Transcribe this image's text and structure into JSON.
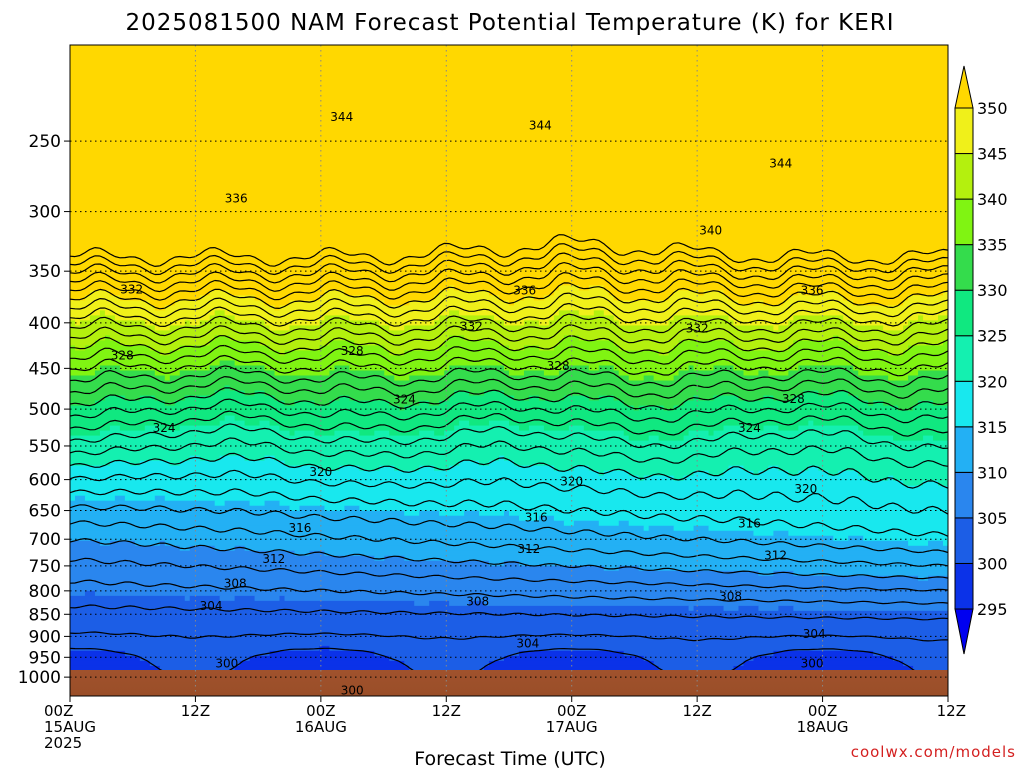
{
  "chart_data": {
    "type": "heatmap",
    "title": "2025081500 NAM Forecast Potential Temperature (K) for KERI",
    "xlabel": "Forecast Time (UTC)",
    "ylabel": "",
    "credit": "coolwx.com/models",
    "x_range_hours": [
      0,
      84
    ],
    "x_ticks": [
      {
        "hour": 0,
        "lines": [
          "00Z",
          "15AUG",
          "2025"
        ]
      },
      {
        "hour": 12,
        "lines": [
          "12Z"
        ]
      },
      {
        "hour": 24,
        "lines": [
          "00Z",
          "16AUG"
        ]
      },
      {
        "hour": 36,
        "lines": [
          "12Z"
        ]
      },
      {
        "hour": 48,
        "lines": [
          "00Z",
          "17AUG"
        ]
      },
      {
        "hour": 60,
        "lines": [
          "12Z"
        ]
      },
      {
        "hour": 72,
        "lines": [
          "00Z",
          "18AUG"
        ]
      },
      {
        "hour": 84,
        "lines": [
          "12Z"
        ]
      }
    ],
    "y_scale": "log-pressure",
    "y_range_hpa": [
      1050,
      195
    ],
    "y_ticks_hpa": [
      250,
      300,
      350,
      400,
      450,
      500,
      550,
      600,
      650,
      700,
      750,
      800,
      850,
      900,
      950,
      1000
    ],
    "grid": true,
    "colorbar": {
      "levels": [
        295,
        300,
        305,
        310,
        315,
        320,
        325,
        330,
        335,
        340,
        345,
        350
      ],
      "colors": [
        "#0000f0",
        "#0b32e8",
        "#1c5ee6",
        "#2a86ee",
        "#23b0f4",
        "#18e8ee",
        "#14f0b0",
        "#10e880",
        "#34dc4c",
        "#80f412",
        "#b4f00e",
        "#f0f01a",
        "#ffd800"
      ],
      "extend": "both"
    },
    "contour_labels": [
      {
        "value": 344,
        "hour": 26.0,
        "hpa": 235
      },
      {
        "value": 344,
        "hour": 45.0,
        "hpa": 240
      },
      {
        "value": 344,
        "hour": 68.0,
        "hpa": 265
      },
      {
        "value": 340,
        "hour": 61.3,
        "hpa": 315
      },
      {
        "value": 336,
        "hour": 15.9,
        "hpa": 290
      },
      {
        "value": 336,
        "hour": 43.5,
        "hpa": 368
      },
      {
        "value": 336,
        "hour": 71.0,
        "hpa": 368
      },
      {
        "value": 332,
        "hour": 5.9,
        "hpa": 367
      },
      {
        "value": 332,
        "hour": 38.4,
        "hpa": 404
      },
      {
        "value": 332,
        "hour": 60.0,
        "hpa": 406
      },
      {
        "value": 328,
        "hour": 5.0,
        "hpa": 435
      },
      {
        "value": 328,
        "hour": 27.0,
        "hpa": 430
      },
      {
        "value": 328,
        "hour": 46.7,
        "hpa": 447
      },
      {
        "value": 328,
        "hour": 69.2,
        "hpa": 487
      },
      {
        "value": 324,
        "hour": 9.0,
        "hpa": 525
      },
      {
        "value": 324,
        "hour": 32.0,
        "hpa": 488
      },
      {
        "value": 324,
        "hour": 65.0,
        "hpa": 525
      },
      {
        "value": 320,
        "hour": 24.0,
        "hpa": 588
      },
      {
        "value": 320,
        "hour": 48.0,
        "hpa": 603
      },
      {
        "value": 320,
        "hour": 70.4,
        "hpa": 615
      },
      {
        "value": 316,
        "hour": 22.0,
        "hpa": 680
      },
      {
        "value": 316,
        "hour": 44.6,
        "hpa": 662
      },
      {
        "value": 316,
        "hour": 65.0,
        "hpa": 672
      },
      {
        "value": 312,
        "hour": 19.5,
        "hpa": 737
      },
      {
        "value": 312,
        "hour": 43.9,
        "hpa": 718
      },
      {
        "value": 312,
        "hour": 67.5,
        "hpa": 730
      },
      {
        "value": 308,
        "hour": 15.8,
        "hpa": 785
      },
      {
        "value": 308,
        "hour": 39.0,
        "hpa": 822
      },
      {
        "value": 308,
        "hour": 63.2,
        "hpa": 812
      },
      {
        "value": 304,
        "hour": 13.5,
        "hpa": 832
      },
      {
        "value": 304,
        "hour": 43.8,
        "hpa": 917
      },
      {
        "value": 304,
        "hour": 71.2,
        "hpa": 895
      },
      {
        "value": 300,
        "hour": 15.0,
        "hpa": 965
      },
      {
        "value": 300,
        "hour": 27.0,
        "hpa": 1035
      },
      {
        "value": 300,
        "hour": 71.0,
        "hpa": 965
      }
    ]
  }
}
